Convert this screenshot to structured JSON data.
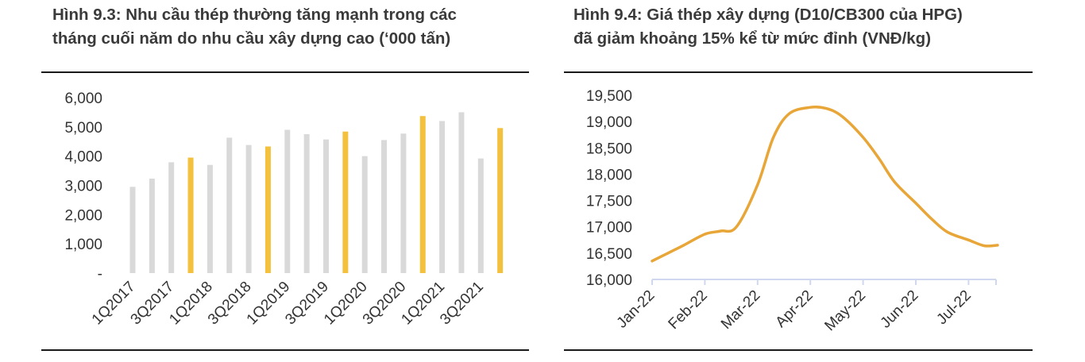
{
  "chart_data": [
    {
      "type": "bar",
      "title_line1": "Hình 9.3: Nhu cầu thép thường tăng mạnh trong các",
      "title_line2": "tháng cuối năm do nhu cầu xây dựng cao (‘000 tấn)",
      "categories": [
        "1Q2017",
        "2Q2017",
        "3Q2017",
        "4Q2017",
        "1Q2018",
        "2Q2018",
        "3Q2018",
        "4Q2018",
        "1Q2019",
        "2Q2019",
        "3Q2019",
        "4Q2019",
        "1Q2020",
        "2Q2020",
        "3Q2020",
        "4Q2020",
        "1Q2021",
        "2Q2021",
        "3Q2021",
        "4Q2021"
      ],
      "shown_x_labels": [
        "1Q2017",
        "3Q2017",
        "1Q2018",
        "3Q2018",
        "1Q2019",
        "3Q2019",
        "1Q2020",
        "3Q2020",
        "1Q2021",
        "3Q2021"
      ],
      "values": [
        2950,
        3230,
        3790,
        3950,
        3700,
        4630,
        4380,
        4330,
        4900,
        4750,
        4570,
        4840,
        4000,
        4550,
        4770,
        5370,
        5200,
        5500,
        3920,
        4960
      ],
      "highlight_quarter": "4Q",
      "y_ticks": [
        "-",
        "1,000",
        "2,000",
        "3,000",
        "4,000",
        "5,000",
        "6,000"
      ],
      "ylim": [
        0,
        6000
      ],
      "colors": {
        "base": "#d9d9d9",
        "highlight": "#f4c13f"
      }
    },
    {
      "type": "line",
      "title_line1": "Hình 9.4: Giá thép xây dựng (D10/CB300 của HPG)",
      "title_line2": "đã giảm khoảng 15% kể từ mức đỉnh (VNĐ/kg)",
      "x_labels": [
        "Jan-22",
        "Feb-22",
        "Mar-22",
        "Apr-22",
        "May-22",
        "Jun-22",
        "Jul-22"
      ],
      "x": [
        0,
        0.3,
        0.6,
        1.0,
        1.3,
        1.6,
        2.0,
        2.3,
        2.6,
        3.0,
        3.3,
        3.6,
        4.0,
        4.3,
        4.6,
        5.0,
        5.3,
        5.6,
        6.0,
        6.3,
        6.55
      ],
      "values": [
        16350,
        16500,
        16650,
        16860,
        16920,
        17000,
        17800,
        18700,
        19150,
        19270,
        19250,
        19100,
        18700,
        18300,
        17850,
        17450,
        17150,
        16900,
        16750,
        16640,
        16650
      ],
      "y_ticks": [
        "16,000",
        "16,500",
        "17,000",
        "17,500",
        "18,000",
        "18,500",
        "19,000",
        "19,500"
      ],
      "ylim": [
        16000,
        19500
      ],
      "colors": {
        "line": "#e8a638",
        "axis": "#cfd8ef"
      }
    }
  ]
}
